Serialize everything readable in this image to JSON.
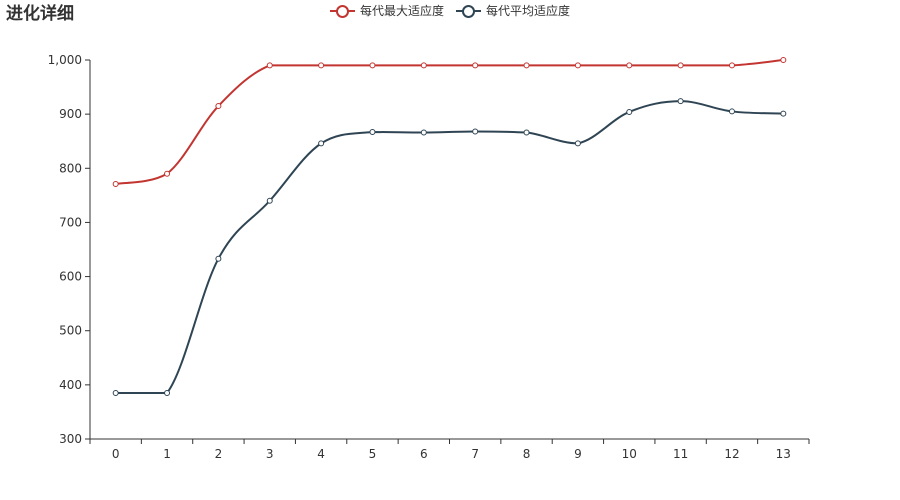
{
  "colors": {
    "max_series": "#c23531",
    "avg_series": "#2f4554",
    "axis": "#333333",
    "title": "#333333"
  },
  "chart_data": {
    "type": "line",
    "title": "进化详细",
    "xlabel": "",
    "ylabel": "",
    "x": [
      "0",
      "1",
      "2",
      "3",
      "4",
      "5",
      "6",
      "7",
      "8",
      "9",
      "10",
      "11",
      "12",
      "13"
    ],
    "ylim": [
      300,
      1000
    ],
    "yticks": [
      300,
      400,
      500,
      600,
      700,
      800,
      900,
      1000
    ],
    "ytick_labels": [
      "300",
      "400",
      "500",
      "600",
      "700",
      "800",
      "900",
      "1,000"
    ],
    "grid": false,
    "smooth": true,
    "legend_position": "top-center",
    "series": [
      {
        "name": "每代最大适应度",
        "color": "#c23531",
        "values": [
          771,
          790,
          915,
          990,
          990,
          990,
          990,
          990,
          990,
          990,
          990,
          990,
          990,
          1000
        ]
      },
      {
        "name": "每代平均适应度",
        "color": "#2f4554",
        "values": [
          385,
          385,
          633,
          740,
          846,
          867,
          866,
          868,
          866,
          846,
          904,
          924,
          905,
          901
        ]
      }
    ]
  }
}
